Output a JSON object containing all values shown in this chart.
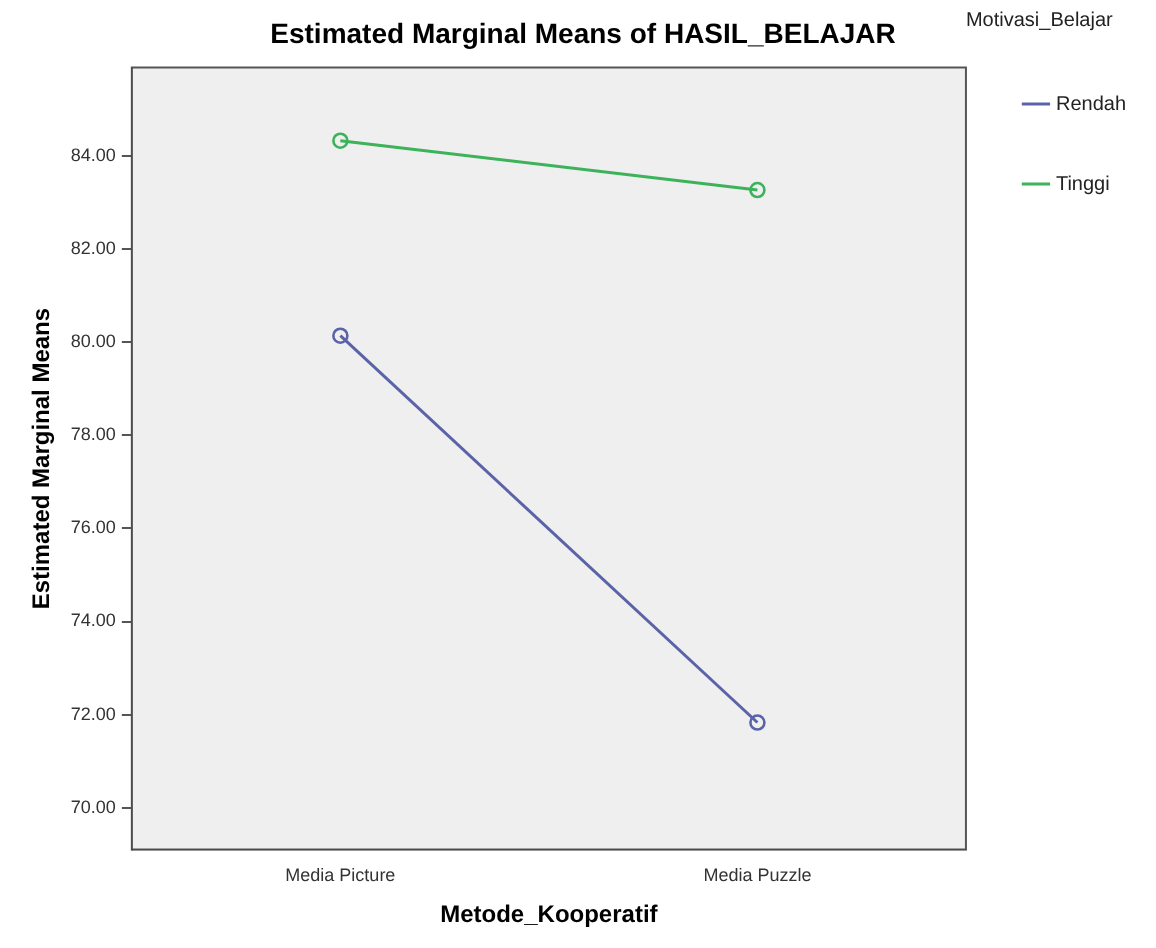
{
  "chart_data": {
    "type": "line",
    "title": "Estimated Marginal Means of HASIL_BELAJAR",
    "xlabel": "Metode_Kooperatif",
    "ylabel": "Estimated Marginal Means",
    "legend_title": "Motivasi_Belajar",
    "categories": [
      "Media Picture",
      "Media Puzzle"
    ],
    "series": [
      {
        "name": "Rendah",
        "color": "#5a63a8",
        "values": [
          80.14,
          71.83
        ]
      },
      {
        "name": "Tinggi",
        "color": "#3cb25a",
        "values": [
          84.33,
          83.27
        ]
      }
    ],
    "ylim": [
      69.1,
      85.9
    ],
    "yticks": [
      {
        "value": 70,
        "label": "70.00"
      },
      {
        "value": 72,
        "label": "72.00"
      },
      {
        "value": 74,
        "label": "74.00"
      },
      {
        "value": 76,
        "label": "76.00"
      },
      {
        "value": 78,
        "label": "78.00"
      },
      {
        "value": 80,
        "label": "80.00"
      },
      {
        "value": 82,
        "label": "82.00"
      },
      {
        "value": 84,
        "label": "84.00"
      }
    ],
    "grid": false,
    "legend": "top right",
    "marker": "circle",
    "line_style": "solid"
  }
}
